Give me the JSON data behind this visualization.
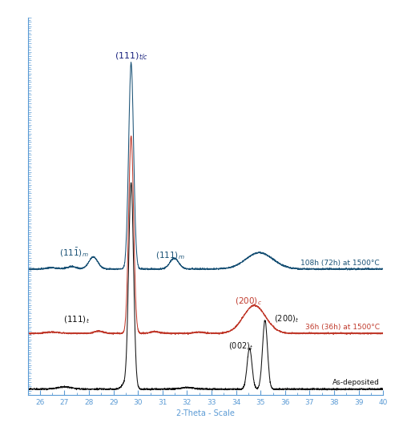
{
  "x_min": 25.5,
  "x_max": 40.0,
  "xlabel": "2-Theta - Scale",
  "background_color": "#ffffff",
  "tick_color": "#5b9bd5",
  "colors": {
    "black": "#111111",
    "red": "#c0392b",
    "blue": "#1a5276"
  },
  "offsets": {
    "black": 0,
    "red": 130,
    "blue": 280
  },
  "peak_main_height": 480,
  "xticks": [
    26,
    27,
    28,
    29,
    30,
    31,
    32,
    33,
    34,
    35,
    36,
    37,
    38,
    39,
    40
  ],
  "ylim_min": -10,
  "ylim_max": 870
}
